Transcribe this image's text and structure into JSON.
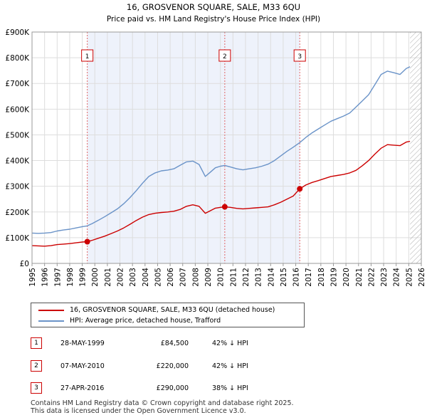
{
  "chart_data": {
    "type": "line",
    "title": "16, GROSVENOR SQUARE, SALE, M33 6QU",
    "subtitle": "Price paid vs. HM Land Registry's House Price Index (HPI)",
    "xlim": [
      1995,
      2026
    ],
    "ylim": [
      0,
      900000
    ],
    "x_ticks": [
      "1995",
      "1996",
      "1997",
      "1998",
      "1999",
      "2000",
      "2001",
      "2002",
      "2003",
      "2004",
      "2005",
      "2006",
      "2007",
      "2008",
      "2009",
      "2010",
      "2011",
      "2012",
      "2013",
      "2014",
      "2015",
      "2016",
      "2017",
      "2018",
      "2019",
      "2020",
      "2021",
      "2022",
      "2023",
      "2024",
      "2025",
      "2026"
    ],
    "y_tick_values": [
      0,
      100000,
      200000,
      300000,
      400000,
      500000,
      600000,
      700000,
      800000,
      900000
    ],
    "y_tick_labels": [
      "£0",
      "£100K",
      "£200K",
      "£300K",
      "£400K",
      "£500K",
      "£600K",
      "£700K",
      "£800K",
      "£900K"
    ],
    "highlight_range": [
      1999.4,
      2016.32
    ],
    "projection_start": 2025.1,
    "series": [
      {
        "name": "16, GROSVENOR SQUARE, SALE, M33 6QU (detached house)",
        "color": "#cc0000",
        "x": [
          1995,
          1995.5,
          1996,
          1996.5,
          1997,
          1997.5,
          1998,
          1998.5,
          1999,
          1999.4,
          1999.8,
          2000.3,
          2000.8,
          2001.3,
          2001.8,
          2002.3,
          2002.8,
          2003.3,
          2003.8,
          2004.3,
          2004.8,
          2005.3,
          2005.8,
          2006.3,
          2006.8,
          2007.3,
          2007.8,
          2008.3,
          2008.8,
          2009.2,
          2009.6,
          2010.0,
          2010.35,
          2010.8,
          2011.3,
          2011.8,
          2012.3,
          2012.8,
          2013.3,
          2013.8,
          2014.3,
          2014.8,
          2015.3,
          2015.8,
          2016.32,
          2016.8,
          2017.3,
          2017.8,
          2018.3,
          2018.8,
          2019.3,
          2019.8,
          2020.3,
          2020.8,
          2021.3,
          2021.8,
          2022.3,
          2022.8,
          2023.3,
          2023.8,
          2024.3,
          2024.8,
          2025.1
        ],
        "values": [
          69000,
          68000,
          67000,
          69000,
          73000,
          75000,
          77000,
          80000,
          83000,
          84500,
          90000,
          98000,
          106000,
          116000,
          126000,
          138000,
          152000,
          167000,
          180000,
          190000,
          195000,
          198000,
          200000,
          203000,
          210000,
          222000,
          228000,
          222000,
          195000,
          205000,
          215000,
          218000,
          220000,
          218000,
          214000,
          212000,
          214000,
          216000,
          218000,
          220000,
          228000,
          238000,
          250000,
          262000,
          290000,
          305000,
          315000,
          322000,
          330000,
          338000,
          342000,
          346000,
          352000,
          362000,
          380000,
          400000,
          425000,
          448000,
          462000,
          460000,
          458000,
          472000,
          475000
        ]
      },
      {
        "name": "HPI: Average price, detached house, Trafford",
        "color": "#6a93c8",
        "x": [
          1995,
          1995.5,
          1996,
          1996.5,
          1997,
          1997.5,
          1998,
          1998.5,
          1999,
          1999.4,
          1999.8,
          2000.3,
          2000.8,
          2001.3,
          2001.8,
          2002.3,
          2002.8,
          2003.3,
          2003.8,
          2004.3,
          2004.8,
          2005.3,
          2005.8,
          2006.3,
          2006.8,
          2007.3,
          2007.8,
          2008.3,
          2008.8,
          2009.2,
          2009.6,
          2010.0,
          2010.35,
          2010.8,
          2011.3,
          2011.8,
          2012.3,
          2012.8,
          2013.3,
          2013.8,
          2014.3,
          2014.8,
          2015.3,
          2015.8,
          2016.32,
          2016.8,
          2017.3,
          2017.8,
          2018.3,
          2018.8,
          2019.3,
          2019.8,
          2020.3,
          2020.8,
          2021.3,
          2021.8,
          2022.3,
          2022.8,
          2023.3,
          2023.8,
          2024.3,
          2024.8,
          2025.1
        ],
        "values": [
          118000,
          117000,
          118000,
          120000,
          126000,
          130000,
          133000,
          138000,
          143000,
          146000,
          155000,
          168000,
          182000,
          197000,
          212000,
          232000,
          256000,
          283000,
          312000,
          338000,
          352000,
          360000,
          363000,
          368000,
          382000,
          395000,
          398000,
          385000,
          338000,
          355000,
          372000,
          378000,
          381000,
          375000,
          368000,
          364000,
          368000,
          372000,
          378000,
          386000,
          400000,
          418000,
          436000,
          452000,
          470000,
          490000,
          508000,
          523000,
          538000,
          553000,
          563000,
          573000,
          585000,
          608000,
          632000,
          656000,
          695000,
          735000,
          748000,
          742000,
          735000,
          758000,
          765000
        ]
      }
    ],
    "sales": [
      {
        "label": "1",
        "x": 1999.4,
        "value": 84500
      },
      {
        "label": "2",
        "x": 2010.35,
        "value": 220000
      },
      {
        "label": "3",
        "x": 2016.32,
        "value": 290000
      }
    ]
  },
  "legend": {
    "property_label": "16, GROSVENOR SQUARE, SALE, M33 6QU (detached house)",
    "hpi_label": "HPI: Average price, detached house, Trafford"
  },
  "sales_table": [
    {
      "num": "1",
      "date": "28-MAY-1999",
      "price": "£84,500",
      "hpi": "42% ↓ HPI"
    },
    {
      "num": "2",
      "date": "07-MAY-2010",
      "price": "£220,000",
      "hpi": "42% ↓ HPI"
    },
    {
      "num": "3",
      "date": "27-APR-2016",
      "price": "£290,000",
      "hpi": "38% ↓ HPI"
    }
  ],
  "footer": {
    "line1": "Contains HM Land Registry data © Crown copyright and database right 2025.",
    "line2": "This data is licensed under the Open Government Licence v3.0."
  }
}
